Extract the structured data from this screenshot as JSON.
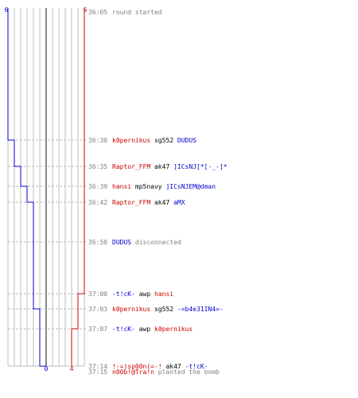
{
  "graph": {
    "colors": {
      "blue": "#0000cc",
      "red": "#cc0000",
      "grid": "#bdbdbd",
      "mid": "#888888",
      "text_gray": "#808080",
      "black": "#000000"
    },
    "top_left_count": "6",
    "top_right_count": "6",
    "bottom_left_count": "0",
    "bottom_right_count": "4"
  },
  "events": [
    {
      "time": "36:05",
      "parts": [
        {
          "t": "round started",
          "c": "gray"
        }
      ]
    },
    {
      "time": "36:30",
      "parts": [
        {
          "t": "k0pernikus",
          "c": "red"
        },
        {
          "t": " sg552 ",
          "c": "black"
        },
        {
          "t": "DUDUS",
          "c": "blue"
        }
      ]
    },
    {
      "time": "36:35",
      "parts": [
        {
          "t": "Raptor_FFM",
          "c": "red"
        },
        {
          "t": " ak47 ",
          "c": "black"
        },
        {
          "t": "]ICsNJ[*[-_-]*",
          "c": "blue"
        }
      ]
    },
    {
      "time": "36:39",
      "parts": [
        {
          "t": "hansi",
          "c": "red"
        },
        {
          "t": " mp5navy ",
          "c": "black"
        },
        {
          "t": "]ICsNJEM@dman",
          "c": "blue"
        }
      ]
    },
    {
      "time": "36:42",
      "parts": [
        {
          "t": "Raptor_FFM",
          "c": "red"
        },
        {
          "t": " ak47 ",
          "c": "black"
        },
        {
          "t": "aMX",
          "c": "blue"
        }
      ]
    },
    {
      "time": "36:50",
      "parts": [
        {
          "t": "DUDUS",
          "c": "blue"
        },
        {
          "t": " disconnected",
          "c": "gray"
        }
      ]
    },
    {
      "time": "37:00",
      "parts": [
        {
          "t": "-t!cK-",
          "c": "blue"
        },
        {
          "t": " awp ",
          "c": "black"
        },
        {
          "t": "hansi",
          "c": "red"
        }
      ]
    },
    {
      "time": "37:03",
      "parts": [
        {
          "t": "k0pernikus",
          "c": "red"
        },
        {
          "t": " sg552 ",
          "c": "black"
        },
        {
          "t": "-=b4e31IN4=-",
          "c": "blue"
        }
      ]
    },
    {
      "time": "37:07",
      "parts": [
        {
          "t": "-t!cK-",
          "c": "blue"
        },
        {
          "t": " awp ",
          "c": "black"
        },
        {
          "t": "k0pernikus",
          "c": "red"
        }
      ]
    },
    {
      "time": "37:14",
      "parts": [
        {
          "t": "!-=)sp00n(=-!",
          "c": "red"
        },
        {
          "t": " ak47 ",
          "c": "black"
        },
        {
          "t": "-t!cK-",
          "c": "blue"
        }
      ]
    },
    {
      "time": "37:15",
      "parts": [
        {
          "t": "n00b!@Tra!n",
          "c": "red"
        },
        {
          "t": " planted the bomb",
          "c": "gray"
        }
      ]
    }
  ]
}
